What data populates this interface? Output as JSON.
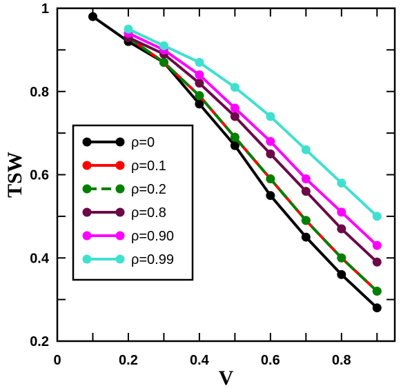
{
  "chart_data": {
    "type": "line",
    "xlabel": "V",
    "ylabel": "TSW",
    "xlim": [
      0,
      0.95
    ],
    "ylim": [
      0.2,
      1.0
    ],
    "xticks": [
      0,
      0.2,
      0.4,
      0.6,
      0.8
    ],
    "xtick_labels": [
      "0",
      "0.2",
      "0.4",
      "0.6",
      "0.8"
    ],
    "yticks": [
      0.2,
      0.4,
      0.6,
      0.8,
      1.0
    ],
    "ytick_labels": [
      "0.2",
      "0.4",
      "0.6",
      "0.8",
      "1"
    ],
    "grid": false,
    "legend_position": "center-left",
    "series": [
      {
        "name": "ρ=0",
        "color": "#000000",
        "dashed": false,
        "x": [
          0.1,
          0.2,
          0.3,
          0.4,
          0.5,
          0.6,
          0.7,
          0.8,
          0.9
        ],
        "y": [
          0.98,
          0.92,
          0.87,
          0.77,
          0.67,
          0.55,
          0.45,
          0.36,
          0.28
        ]
      },
      {
        "name": "ρ=0.1",
        "color": "#ff0000",
        "dashed": false,
        "x": [
          0.2,
          0.3,
          0.4,
          0.5,
          0.6,
          0.7,
          0.8,
          0.9
        ],
        "y": [
          0.93,
          0.87,
          0.79,
          0.69,
          0.59,
          0.49,
          0.4,
          0.32
        ]
      },
      {
        "name": "ρ=0.2",
        "color": "#008000",
        "dashed": true,
        "x": [
          0.2,
          0.3,
          0.4,
          0.5,
          0.6,
          0.7,
          0.8,
          0.9
        ],
        "y": [
          0.93,
          0.87,
          0.79,
          0.69,
          0.59,
          0.49,
          0.4,
          0.32
        ]
      },
      {
        "name": "ρ=0.8",
        "color": "#6b0a47",
        "dashed": false,
        "x": [
          0.2,
          0.3,
          0.4,
          0.5,
          0.6,
          0.7,
          0.8,
          0.9
        ],
        "y": [
          0.93,
          0.89,
          0.82,
          0.74,
          0.65,
          0.56,
          0.47,
          0.39
        ]
      },
      {
        "name": "ρ=0.90",
        "color": "#ff00ff",
        "dashed": false,
        "x": [
          0.2,
          0.3,
          0.4,
          0.5,
          0.6,
          0.7,
          0.8,
          0.9
        ],
        "y": [
          0.94,
          0.9,
          0.84,
          0.76,
          0.68,
          0.59,
          0.51,
          0.43
        ]
      },
      {
        "name": "ρ=0.99",
        "color": "#40e0d0",
        "dashed": false,
        "x": [
          0.2,
          0.3,
          0.4,
          0.5,
          0.6,
          0.7,
          0.8,
          0.9
        ],
        "y": [
          0.95,
          0.91,
          0.87,
          0.81,
          0.74,
          0.66,
          0.58,
          0.5
        ]
      }
    ]
  }
}
